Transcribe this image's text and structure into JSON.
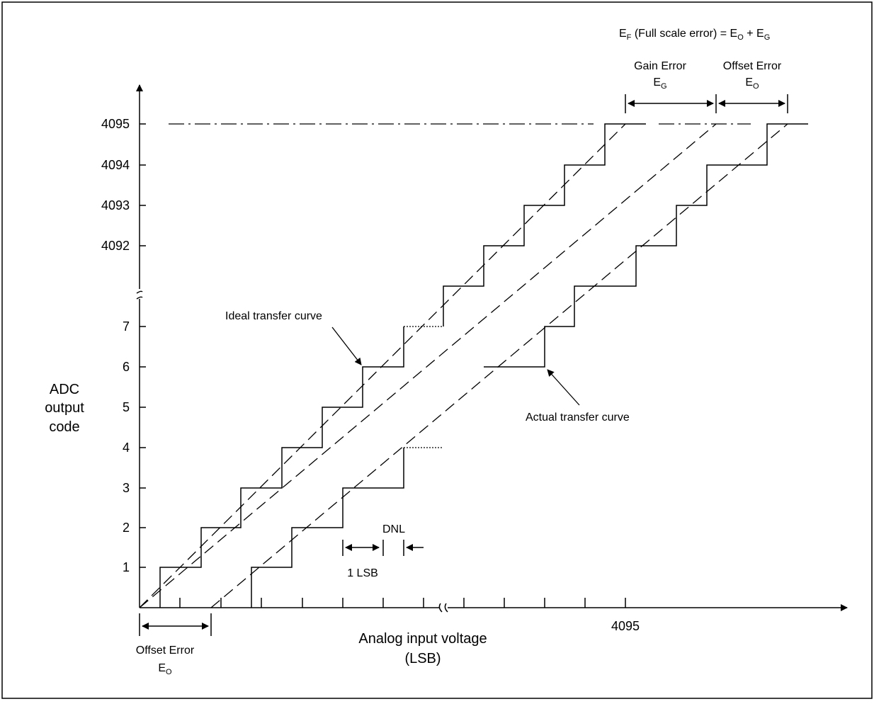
{
  "y_axis": {
    "title_lines": [
      "ADC",
      "output",
      "code"
    ],
    "upper_ticks": [
      "4095",
      "4094",
      "4093",
      "4092"
    ],
    "lower_ticks": [
      "7",
      "6",
      "5",
      "4",
      "3",
      "2",
      "1"
    ]
  },
  "x_axis": {
    "title_lines": [
      "Analog input voltage",
      "(LSB)"
    ],
    "tick_label": "4095"
  },
  "annotations": {
    "full_scale": {
      "pre": "E",
      "sub": "F",
      "post": " (Full scale error) = E",
      "sub2": "O",
      "mid": " + E",
      "sub3": "G"
    },
    "gain_error": {
      "line1": "Gain Error",
      "sym": "E",
      "sub": "G"
    },
    "offset_error_top": {
      "line1": "Offset Error",
      "sym": "E",
      "sub": "O"
    },
    "offset_error_bottom": {
      "line1": "Offset Error",
      "sym": "E",
      "sub": "O"
    },
    "ideal_curve": "Ideal transfer curve",
    "actual_curve": "Actual transfer curve",
    "dnl": "DNL",
    "lsb": "1 LSB"
  },
  "colors": {
    "ink": "#000000",
    "background": "#ffffff"
  }
}
